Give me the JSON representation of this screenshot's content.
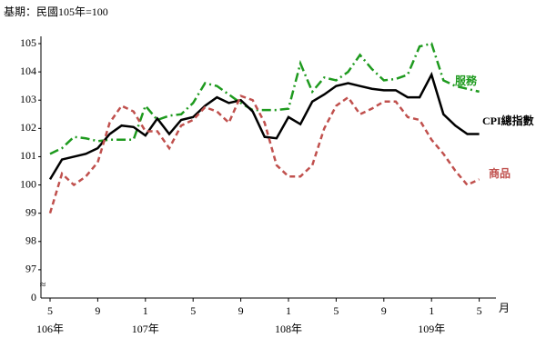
{
  "chart_data": {
    "type": "line",
    "title": "基期：民國105年=100",
    "categories": [
      "5",
      null,
      null,
      null,
      "9",
      null,
      null,
      null,
      "1",
      null,
      null,
      null,
      "5",
      null,
      null,
      null,
      "9",
      null,
      null,
      null,
      "1",
      null,
      null,
      null,
      "5",
      null,
      null,
      null,
      "9",
      null,
      null,
      null,
      "1",
      null,
      null,
      null,
      "5"
    ],
    "years": [
      "106年",
      "107年",
      "108年",
      "109年"
    ],
    "x_unit": "月",
    "y_floor_label": "0",
    "axis_break": "≈",
    "ylim": [
      96,
      105
    ],
    "yticks": [
      97,
      98,
      99,
      100,
      101,
      102,
      103,
      104,
      105
    ],
    "series": [
      {
        "name": "服務",
        "color": "#1e9a1e",
        "dash": "10,4,2,4",
        "values": [
          101.1,
          101.3,
          101.7,
          101.65,
          101.55,
          101.6,
          101.6,
          101.6,
          102.8,
          102.3,
          102.45,
          102.5,
          102.9,
          103.6,
          103.5,
          103.2,
          102.9,
          102.65,
          102.65,
          102.65,
          102.7,
          104.3,
          103.3,
          103.8,
          103.7,
          104.0,
          104.6,
          104.1,
          103.7,
          103.75,
          103.9,
          104.9,
          105.0,
          103.7,
          103.5,
          103.4,
          103.3
        ]
      },
      {
        "name": "CPI總指數",
        "color": "#000000",
        "dash": "",
        "values": [
          100.2,
          100.9,
          101.0,
          101.1,
          101.3,
          101.8,
          102.1,
          102.05,
          101.75,
          102.35,
          101.8,
          102.3,
          102.4,
          102.8,
          103.1,
          102.9,
          103.0,
          102.6,
          101.7,
          101.65,
          102.4,
          102.15,
          102.95,
          103.2,
          103.5,
          103.6,
          103.5,
          103.4,
          103.35,
          103.35,
          103.1,
          103.1,
          103.9,
          102.5,
          102.1,
          101.8,
          101.8
        ]
      },
      {
        "name": "商品",
        "color": "#c0504d",
        "dash": "6,4",
        "values": [
          99.0,
          100.4,
          100.0,
          100.3,
          100.8,
          102.2,
          102.8,
          102.6,
          101.9,
          101.9,
          101.3,
          102.1,
          102.3,
          102.75,
          102.6,
          102.2,
          103.15,
          103.0,
          102.2,
          100.7,
          100.3,
          100.3,
          100.7,
          102.0,
          102.8,
          103.1,
          102.5,
          102.7,
          102.95,
          102.95,
          102.4,
          102.3,
          101.6,
          101.1,
          100.5,
          100.0,
          100.2
        ]
      }
    ]
  }
}
